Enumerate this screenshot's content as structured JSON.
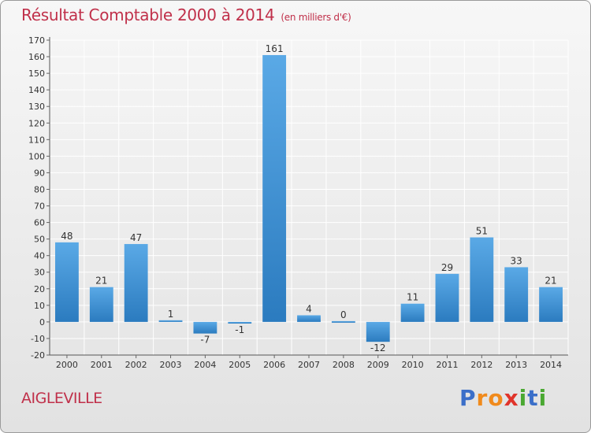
{
  "chart_data": {
    "type": "bar",
    "title": "Résultat Comptable 2000 à 2014",
    "subtitle": "(en milliers d'€)",
    "categories": [
      "2000",
      "2001",
      "2002",
      "2003",
      "2004",
      "2005",
      "2006",
      "2007",
      "2008",
      "2009",
      "2010",
      "2011",
      "2012",
      "2013",
      "2014"
    ],
    "values": [
      48,
      21,
      47,
      1,
      -7,
      -1,
      161,
      4,
      0,
      -12,
      11,
      29,
      51,
      33,
      21
    ],
    "data_labels": [
      "48",
      "21",
      "47",
      "1",
      "-7",
      "-1",
      "161",
      "4",
      "0",
      "-12",
      "11",
      "29",
      "51",
      "33",
      "21"
    ],
    "yticks": [
      "170",
      "160",
      "150",
      "140",
      "130",
      "120",
      "110",
      "100",
      "90",
      "80",
      "70",
      "60",
      "50",
      "40",
      "30",
      "20",
      "10",
      "0",
      "-10",
      "-20"
    ],
    "ylim": [
      -20,
      170
    ],
    "ytick_step": 10,
    "grid": true,
    "xlabel": "",
    "ylabel": ""
  },
  "footer": {
    "place": "AIGLEVILLE",
    "logo": [
      "P",
      "r",
      "o",
      "x",
      "i",
      "t",
      "i"
    ]
  },
  "colors": {
    "bar_top": "#5aa9e6",
    "bar_bottom": "#2b7bbf",
    "title": "#c0304a",
    "grid": "#ffffff"
  }
}
